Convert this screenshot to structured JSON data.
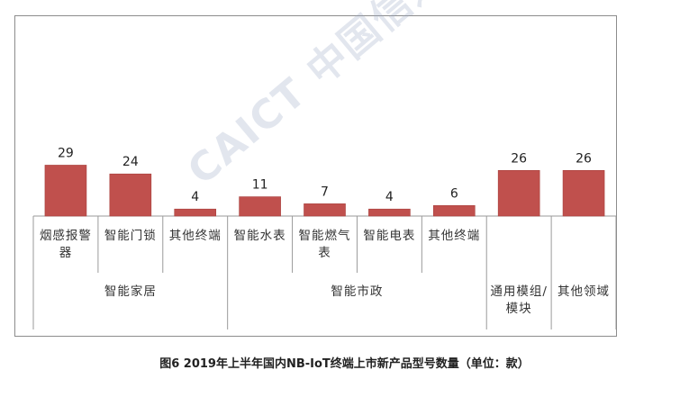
{
  "chart_data": {
    "type": "bar",
    "categories": [
      "烟感报警器",
      "智能门锁",
      "其他终端",
      "智能水表",
      "智能燃气表",
      "智能电表",
      "其他终端",
      "通用模组/模块",
      "其他领域"
    ],
    "values": [
      29,
      24,
      4,
      11,
      7,
      4,
      6,
      26,
      26
    ],
    "groups": [
      {
        "label": "智能家居",
        "count": 3
      },
      {
        "label": "智能市政",
        "count": 4
      },
      {
        "label": "",
        "count": 1
      },
      {
        "label": "",
        "count": 1
      }
    ],
    "ylim": [
      0,
      33
    ],
    "bar_color": "#c0504d",
    "grid": false,
    "legend": "none"
  },
  "watermark": "CAICT 中国信通院",
  "caption": "图6  2019年上半年国内NB-IoT终端上市新产品型号数量（单位：款）"
}
